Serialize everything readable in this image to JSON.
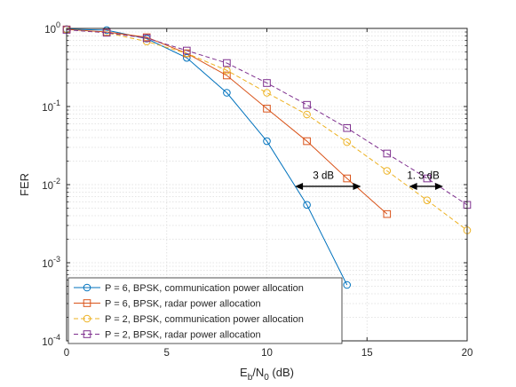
{
  "chart_data": {
    "type": "line",
    "x_scale": "linear",
    "y_scale": "log",
    "xlim": [
      0,
      20
    ],
    "ylim": [
      0.0001,
      1
    ],
    "xticks": [
      "0",
      "5",
      "10",
      "15",
      "20"
    ],
    "xlabel": {
      "main": "E",
      "sub1": "b",
      "mid": "/N",
      "sub2": "0",
      "tail": " (dB)"
    },
    "ylabel": "FER",
    "grid": true,
    "minor_grid": true,
    "legend_position": "bottom-left",
    "series": [
      {
        "name": "P = 6, BPSK, communication power allocation",
        "color": "#0072BD",
        "dash": "solid",
        "marker": "circle",
        "x": [
          0,
          2,
          4,
          6,
          8,
          10,
          12,
          14
        ],
        "y": [
          0.98,
          0.95,
          0.74,
          0.42,
          0.15,
          0.036,
          0.0055,
          0.00052
        ]
      },
      {
        "name": "P = 6, BPSK, radar power allocation",
        "color": "#D95319",
        "dash": "solid",
        "marker": "square",
        "x": [
          0,
          2,
          4,
          6,
          8,
          10,
          12,
          14,
          16
        ],
        "y": [
          0.97,
          0.9,
          0.77,
          0.48,
          0.25,
          0.094,
          0.036,
          0.012,
          0.0042
        ]
      },
      {
        "name": "P = 2, BPSK, communication power allocation",
        "color": "#EDB120",
        "dash": "dashed",
        "marker": "circle",
        "x": [
          0,
          2,
          4,
          6,
          8,
          10,
          12,
          14,
          16,
          18,
          20
        ],
        "y": [
          0.97,
          0.88,
          0.68,
          0.48,
          0.29,
          0.15,
          0.079,
          0.035,
          0.015,
          0.0063,
          0.0026
        ]
      },
      {
        "name": "P = 2, BPSK, radar power allocation",
        "color": "#7E2F8E",
        "dash": "dashed",
        "marker": "square",
        "x": [
          0,
          2,
          4,
          6,
          8,
          10,
          12,
          14,
          16,
          18,
          20
        ],
        "y": [
          0.96,
          0.88,
          0.75,
          0.52,
          0.36,
          0.2,
          0.105,
          0.053,
          0.025,
          0.012,
          0.0055
        ]
      }
    ],
    "annotations": [
      {
        "text": "3 dB",
        "x_from": 11.4,
        "x_to": 14.7,
        "y": 0.0095,
        "label_x": 12.3,
        "label_y": 0.0118
      },
      {
        "text": "1. 3 dB",
        "x_from": 17.1,
        "x_to": 18.8,
        "y": 0.0095,
        "label_x": 17.0,
        "label_y": 0.0118
      }
    ]
  }
}
